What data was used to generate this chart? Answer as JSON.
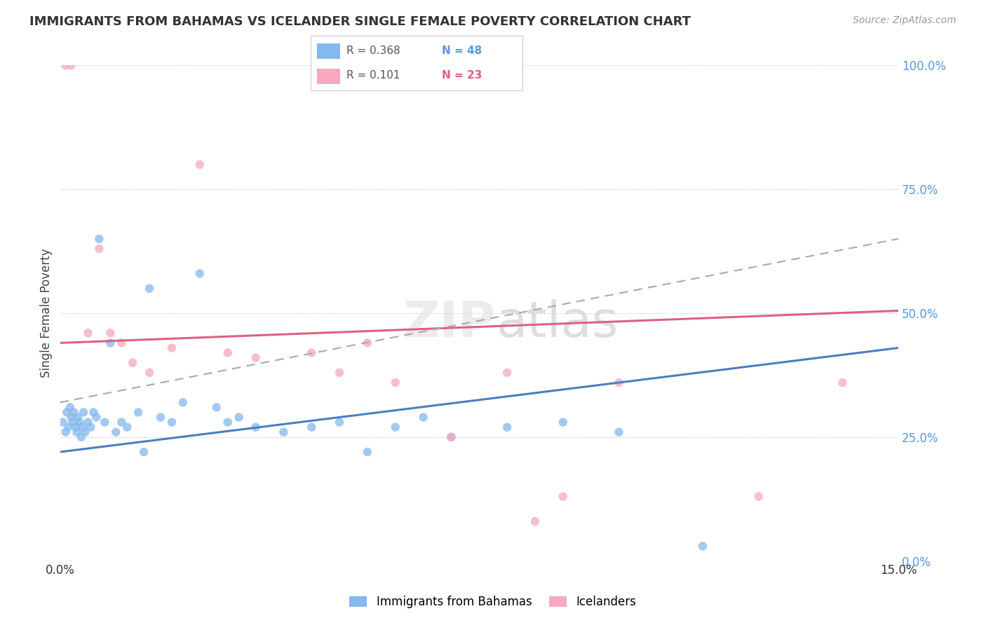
{
  "title": "IMMIGRANTS FROM BAHAMAS VS ICELANDER SINGLE FEMALE POVERTY CORRELATION CHART",
  "source": "Source: ZipAtlas.com",
  "ylabel": "Single Female Poverty",
  "xlim": [
    0.0,
    15.0
  ],
  "ylim": [
    0.0,
    100.0
  ],
  "legend_r1": "R = 0.368",
  "legend_n1": "N = 48",
  "legend_r2": "R = 0.101",
  "legend_n2": "N = 23",
  "legend_label1": "Immigrants from Bahamas",
  "legend_label2": "Icelanders",
  "blue_color": "#85b8ee",
  "pink_color": "#f5a8be",
  "trend_blue": "#4a7fc1",
  "trend_pink": "#e06080",
  "trend_gray": "#aaaaaa",
  "right_axis_color": "#5599dd",
  "background_color": "#ffffff",
  "blue_scatter_x": [
    0.05,
    0.1,
    0.12,
    0.15,
    0.18,
    0.2,
    0.22,
    0.25,
    0.28,
    0.3,
    0.32,
    0.35,
    0.38,
    0.4,
    0.42,
    0.45,
    0.5,
    0.55,
    0.6,
    0.65,
    0.7,
    0.8,
    0.9,
    1.0,
    1.1,
    1.2,
    1.4,
    1.5,
    1.6,
    1.8,
    2.0,
    2.2,
    2.5,
    2.8,
    3.0,
    3.2,
    3.5,
    4.0,
    4.5,
    5.0,
    5.5,
    6.0,
    6.5,
    7.0,
    8.0,
    9.0,
    10.0,
    11.5
  ],
  "blue_scatter_y": [
    28,
    26,
    30,
    27,
    31,
    29,
    28,
    30,
    27,
    26,
    29,
    28,
    25,
    27,
    30,
    26,
    28,
    27,
    30,
    29,
    65,
    28,
    44,
    26,
    28,
    27,
    30,
    22,
    55,
    29,
    28,
    32,
    58,
    31,
    28,
    29,
    27,
    26,
    27,
    28,
    22,
    27,
    29,
    25,
    27,
    28,
    26,
    3
  ],
  "pink_scatter_x": [
    0.1,
    0.2,
    0.5,
    0.7,
    0.9,
    1.1,
    1.3,
    1.6,
    2.0,
    2.5,
    3.0,
    3.5,
    4.5,
    5.0,
    5.5,
    6.0,
    7.0,
    8.0,
    8.5,
    9.0,
    10.0,
    12.5,
    14.0
  ],
  "pink_scatter_y": [
    100,
    100,
    46,
    63,
    46,
    44,
    40,
    38,
    43,
    80,
    42,
    41,
    42,
    38,
    44,
    36,
    25,
    38,
    8,
    13,
    36,
    13,
    36
  ],
  "blue_trend_x": [
    0.0,
    15.0
  ],
  "blue_trend_y": [
    22.0,
    43.0
  ],
  "pink_trend_x": [
    0.0,
    15.0
  ],
  "pink_trend_y": [
    44.0,
    50.5
  ],
  "gray_trend_x": [
    0.0,
    15.0
  ],
  "gray_trend_y": [
    32.0,
    65.0
  ]
}
